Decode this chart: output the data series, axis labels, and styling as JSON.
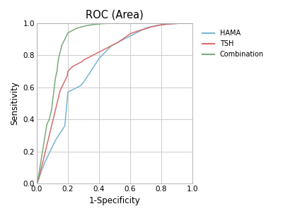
{
  "title": "ROC (Area)",
  "xlabel": "1-Specificity",
  "ylabel": "Sensitivity",
  "xlim": [
    0.0,
    1.0
  ],
  "ylim": [
    0.0,
    1.0
  ],
  "xticks": [
    0.0,
    0.2,
    0.4,
    0.6,
    0.8,
    1.0
  ],
  "yticks": [
    0.0,
    0.2,
    0.4,
    0.6,
    0.8,
    1.0
  ],
  "colors": {
    "HAMA": "#7ab5d0",
    "TSH": "#d96b6b",
    "Combination": "#7aaa7a"
  },
  "legend_labels": [
    "HAMA",
    "TSH",
    "Combination"
  ],
  "background_color": "#ffffff",
  "grid_color": "#cccccc",
  "HAMA_x": [
    0.0,
    0.01,
    0.02,
    0.03,
    0.04,
    0.05,
    0.06,
    0.07,
    0.08,
    0.09,
    0.1,
    0.12,
    0.14,
    0.16,
    0.18,
    0.2,
    0.22,
    0.24,
    0.26,
    0.28,
    0.3,
    0.32,
    0.34,
    0.36,
    0.38,
    0.4,
    0.42,
    0.44,
    0.46,
    0.48,
    0.5,
    0.52,
    0.54,
    0.56,
    0.58,
    0.6,
    0.62,
    0.64,
    0.66,
    0.68,
    0.7,
    0.72,
    0.74,
    0.76,
    0.78,
    0.8,
    0.82,
    0.85,
    0.88,
    0.9,
    0.92,
    0.95,
    1.0
  ],
  "HAMA_y": [
    0.0,
    0.02,
    0.05,
    0.08,
    0.1,
    0.13,
    0.15,
    0.17,
    0.19,
    0.21,
    0.23,
    0.27,
    0.3,
    0.33,
    0.36,
    0.57,
    0.58,
    0.59,
    0.6,
    0.61,
    0.63,
    0.66,
    0.69,
    0.72,
    0.75,
    0.78,
    0.8,
    0.82,
    0.84,
    0.86,
    0.87,
    0.88,
    0.89,
    0.9,
    0.91,
    0.92,
    0.93,
    0.94,
    0.95,
    0.96,
    0.97,
    0.975,
    0.98,
    0.984,
    0.987,
    0.99,
    0.993,
    0.995,
    0.997,
    0.998,
    0.999,
    1.0,
    1.0
  ],
  "TSH_x": [
    0.0,
    0.005,
    0.01,
    0.015,
    0.02,
    0.025,
    0.03,
    0.035,
    0.04,
    0.045,
    0.05,
    0.055,
    0.06,
    0.065,
    0.07,
    0.075,
    0.08,
    0.085,
    0.09,
    0.095,
    0.1,
    0.105,
    0.11,
    0.115,
    0.12,
    0.125,
    0.13,
    0.135,
    0.14,
    0.145,
    0.15,
    0.155,
    0.16,
    0.165,
    0.17,
    0.175,
    0.18,
    0.185,
    0.19,
    0.195,
    0.2,
    0.21,
    0.22,
    0.23,
    0.24,
    0.25,
    0.26,
    0.27,
    0.28,
    0.29,
    0.3,
    0.31,
    0.32,
    0.33,
    0.34,
    0.36,
    0.38,
    0.4,
    0.42,
    0.44,
    0.46,
    0.48,
    0.5,
    0.52,
    0.55,
    0.58,
    0.6,
    0.63,
    0.66,
    0.7,
    0.73,
    0.76,
    0.8,
    0.85,
    0.9,
    0.95,
    1.0
  ],
  "TSH_y": [
    0.0,
    0.01,
    0.025,
    0.04,
    0.06,
    0.08,
    0.1,
    0.12,
    0.14,
    0.16,
    0.18,
    0.2,
    0.22,
    0.24,
    0.26,
    0.28,
    0.3,
    0.32,
    0.34,
    0.36,
    0.38,
    0.4,
    0.42,
    0.44,
    0.46,
    0.48,
    0.5,
    0.52,
    0.54,
    0.56,
    0.58,
    0.59,
    0.6,
    0.61,
    0.62,
    0.63,
    0.64,
    0.65,
    0.66,
    0.67,
    0.7,
    0.71,
    0.72,
    0.73,
    0.735,
    0.74,
    0.745,
    0.75,
    0.755,
    0.76,
    0.77,
    0.775,
    0.78,
    0.785,
    0.79,
    0.8,
    0.81,
    0.82,
    0.83,
    0.84,
    0.85,
    0.86,
    0.87,
    0.88,
    0.9,
    0.92,
    0.935,
    0.945,
    0.955,
    0.965,
    0.975,
    0.982,
    0.99,
    0.995,
    0.998,
    1.0,
    1.0
  ],
  "COMB_x": [
    0.0,
    0.005,
    0.01,
    0.015,
    0.02,
    0.025,
    0.03,
    0.035,
    0.04,
    0.045,
    0.05,
    0.055,
    0.06,
    0.065,
    0.07,
    0.075,
    0.08,
    0.085,
    0.09,
    0.095,
    0.1,
    0.105,
    0.11,
    0.115,
    0.12,
    0.125,
    0.13,
    0.135,
    0.14,
    0.145,
    0.15,
    0.155,
    0.16,
    0.165,
    0.17,
    0.175,
    0.18,
    0.185,
    0.19,
    0.195,
    0.2,
    0.21,
    0.22,
    0.23,
    0.24,
    0.25,
    0.26,
    0.28,
    0.3,
    0.32,
    0.34,
    0.36,
    0.38,
    0.4,
    0.42,
    0.44,
    0.46,
    0.48,
    0.5,
    0.55,
    0.6,
    0.65,
    0.7,
    0.75,
    0.8,
    0.9,
    1.0
  ],
  "COMB_y": [
    0.0,
    0.02,
    0.04,
    0.07,
    0.1,
    0.13,
    0.16,
    0.19,
    0.22,
    0.25,
    0.28,
    0.31,
    0.34,
    0.37,
    0.38,
    0.39,
    0.4,
    0.42,
    0.44,
    0.46,
    0.5,
    0.54,
    0.58,
    0.62,
    0.66,
    0.68,
    0.7,
    0.75,
    0.78,
    0.8,
    0.82,
    0.84,
    0.86,
    0.87,
    0.88,
    0.89,
    0.9,
    0.91,
    0.92,
    0.93,
    0.94,
    0.945,
    0.95,
    0.955,
    0.96,
    0.965,
    0.97,
    0.975,
    0.98,
    0.985,
    0.988,
    0.991,
    0.993,
    0.995,
    0.997,
    0.998,
    0.999,
    1.0,
    1.0,
    1.0,
    1.0,
    1.0,
    1.0,
    1.0,
    1.0,
    1.0,
    1.0
  ]
}
